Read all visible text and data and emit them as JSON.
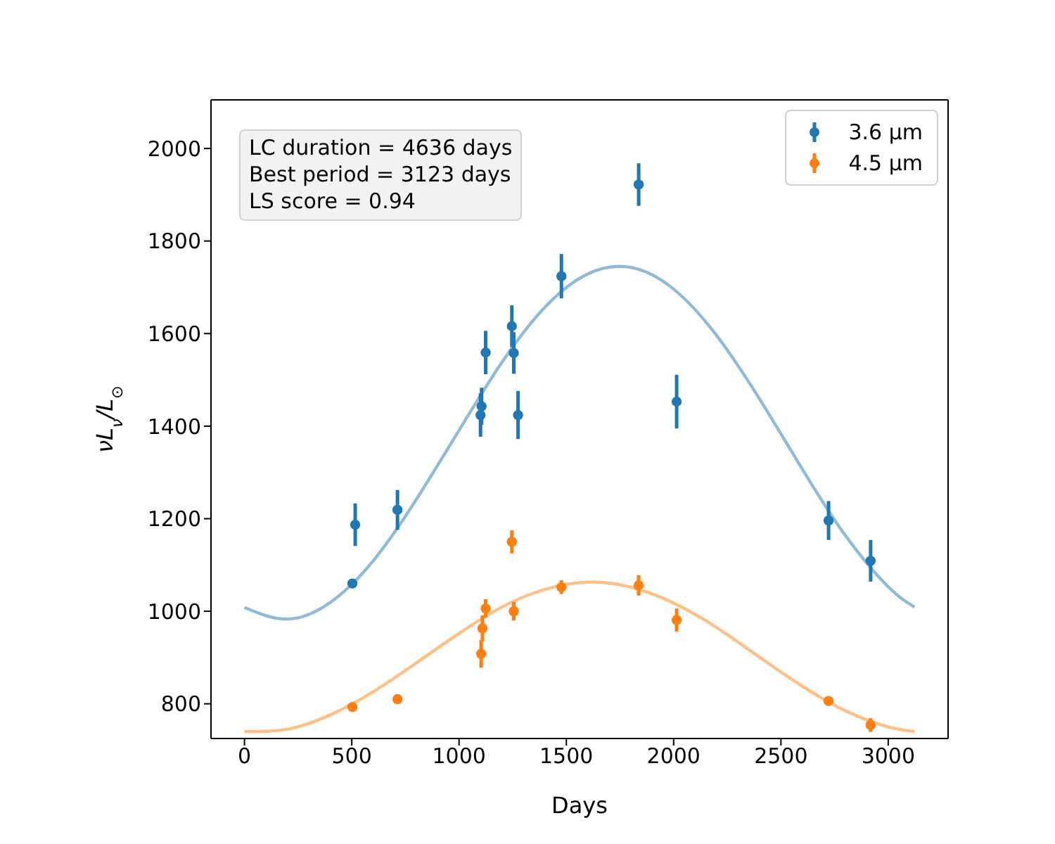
{
  "chart_data": {
    "type": "scatter",
    "xlabel": "Days",
    "ylabel": "νL$_{ν}$/L$_{⊙}$",
    "xlim": [
      -156,
      3279
    ],
    "xticks": [
      0,
      500,
      1000,
      1500,
      2000,
      2500,
      3000
    ],
    "ylim": [
      725,
      2105
    ],
    "yticks": [
      800,
      1000,
      1200,
      1400,
      1600,
      1800,
      2000
    ],
    "legend": "top right",
    "annotations": [
      "LC duration = 4636 days",
      "Best period = 3123 days",
      "LS score = 0.94"
    ],
    "series": [
      {
        "type": "line",
        "color": "#8fbbd9",
        "x": [
          0,
          200,
          400,
          600,
          800,
          1000,
          1200,
          1400,
          1600,
          1800,
          2000,
          2200,
          2400,
          2600,
          2800,
          3000,
          3123
        ],
        "values": [
          1008,
          983,
          1019,
          1109,
          1241,
          1391,
          1538,
          1657,
          1729,
          1743,
          1696,
          1596,
          1459,
          1307,
          1164,
          1053,
          1009
        ]
      },
      {
        "type": "line",
        "color": "#ffbf86",
        "x": [
          0,
          200,
          400,
          600,
          800,
          1000,
          1200,
          1400,
          1600,
          1800,
          2000,
          2200,
          2400,
          2600,
          2800,
          3000,
          3123
        ],
        "values": [
          740,
          745,
          776,
          826,
          888,
          952,
          1009,
          1047,
          1063,
          1052,
          1018,
          965,
          901,
          838,
          785,
          750,
          740
        ]
      },
      {
        "marker": "circle",
        "name": "3.6 μm",
        "color": "#1f77b4",
        "x": [
          503,
          516,
          713,
          1100,
          1105,
          1124,
          1246,
          1255,
          1275,
          1477,
          1837,
          2014,
          2722,
          2918
        ],
        "values": [
          1060,
          1187,
          1219,
          1424,
          1443,
          1559,
          1616,
          1558,
          1424,
          1724,
          1922,
          1453,
          1196,
          1109
        ],
        "errors": [
          6,
          46,
          43,
          47,
          40,
          47,
          45,
          45,
          52,
          48,
          46,
          58,
          42,
          45
        ]
      },
      {
        "marker": "circle",
        "name": "4.5 μm",
        "color": "#ff7f0e",
        "x": [
          503,
          713,
          1103,
          1109,
          1124,
          1246,
          1255,
          1477,
          1837,
          2014,
          2722,
          2918
        ],
        "values": [
          793,
          810,
          908,
          963,
          1006,
          1150,
          1000,
          1052,
          1056,
          981,
          806,
          754
        ],
        "errors": [
          8,
          10,
          30,
          28,
          20,
          25,
          20,
          15,
          22,
          25,
          5,
          15
        ]
      }
    ]
  }
}
